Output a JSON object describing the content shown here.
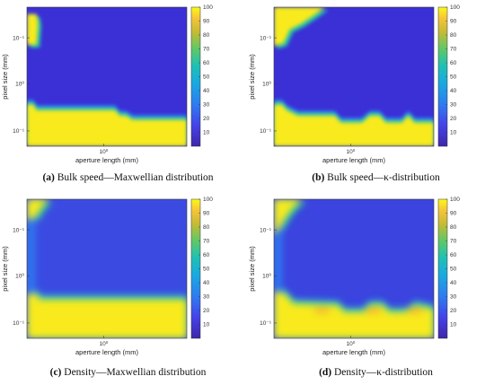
{
  "palette": {
    "low": "#3b2fd6",
    "mid_low": "#2f7bf0",
    "mid": "#21c5a8",
    "mid_high": "#a8d43a",
    "high": "#f8ea1c"
  },
  "chart_data": [
    {
      "id": "a",
      "type": "heatmap",
      "caption_letter": "(a)",
      "caption_text": " Bulk speed—Maxwellian distribution",
      "xlabel": "aperture length (mm)",
      "ylabel": "pixel size (mm)",
      "x_ticks": [
        "10⁰"
      ],
      "y_ticks": [
        "10⁻¹",
        "10⁰",
        "10⁻¹"
      ],
      "colorbar_ticks": [
        "100",
        "90",
        "80",
        "70",
        "60",
        "50",
        "40",
        "30",
        "20",
        "10"
      ],
      "colorbar_range": [
        0,
        100
      ],
      "grid": false
    },
    {
      "id": "b",
      "type": "heatmap",
      "caption_letter": "(b)",
      "caption_text": " Bulk speed—κ-distribution",
      "xlabel": "aperture length (mm)",
      "ylabel": "pixel size (mm)",
      "x_ticks": [
        "10⁰"
      ],
      "y_ticks": [
        "10⁻¹",
        "10⁰",
        "10⁻¹"
      ],
      "colorbar_ticks": [
        "100",
        "90",
        "80",
        "70",
        "60",
        "50",
        "40",
        "30",
        "20",
        "10"
      ],
      "colorbar_range": [
        0,
        100
      ],
      "grid": false
    },
    {
      "id": "c",
      "type": "heatmap",
      "caption_letter": "(c)",
      "caption_text": " Density—Maxwellian distribution",
      "xlabel": "aperture length (mm)",
      "ylabel": "pixel size (mm)",
      "x_ticks": [
        "10⁰"
      ],
      "y_ticks": [
        "10⁻¹",
        "10⁰",
        "10⁻¹"
      ],
      "colorbar_ticks": [
        "100",
        "90",
        "80",
        "70",
        "60",
        "50",
        "40",
        "30",
        "20",
        "10"
      ],
      "colorbar_range": [
        0,
        100
      ],
      "grid": false
    },
    {
      "id": "d",
      "type": "heatmap",
      "caption_letter": "(d)",
      "caption_text": " Density—κ-distribution",
      "xlabel": "aperture length (mm)",
      "ylabel": "pixel size (mm)",
      "x_ticks": [
        "10⁰"
      ],
      "y_ticks": [
        "10⁻¹",
        "10⁰",
        "10⁻¹"
      ],
      "colorbar_ticks": [
        "100",
        "90",
        "80",
        "70",
        "60",
        "50",
        "40",
        "30",
        "20",
        "10"
      ],
      "colorbar_range": [
        0,
        100
      ],
      "grid": false
    }
  ]
}
